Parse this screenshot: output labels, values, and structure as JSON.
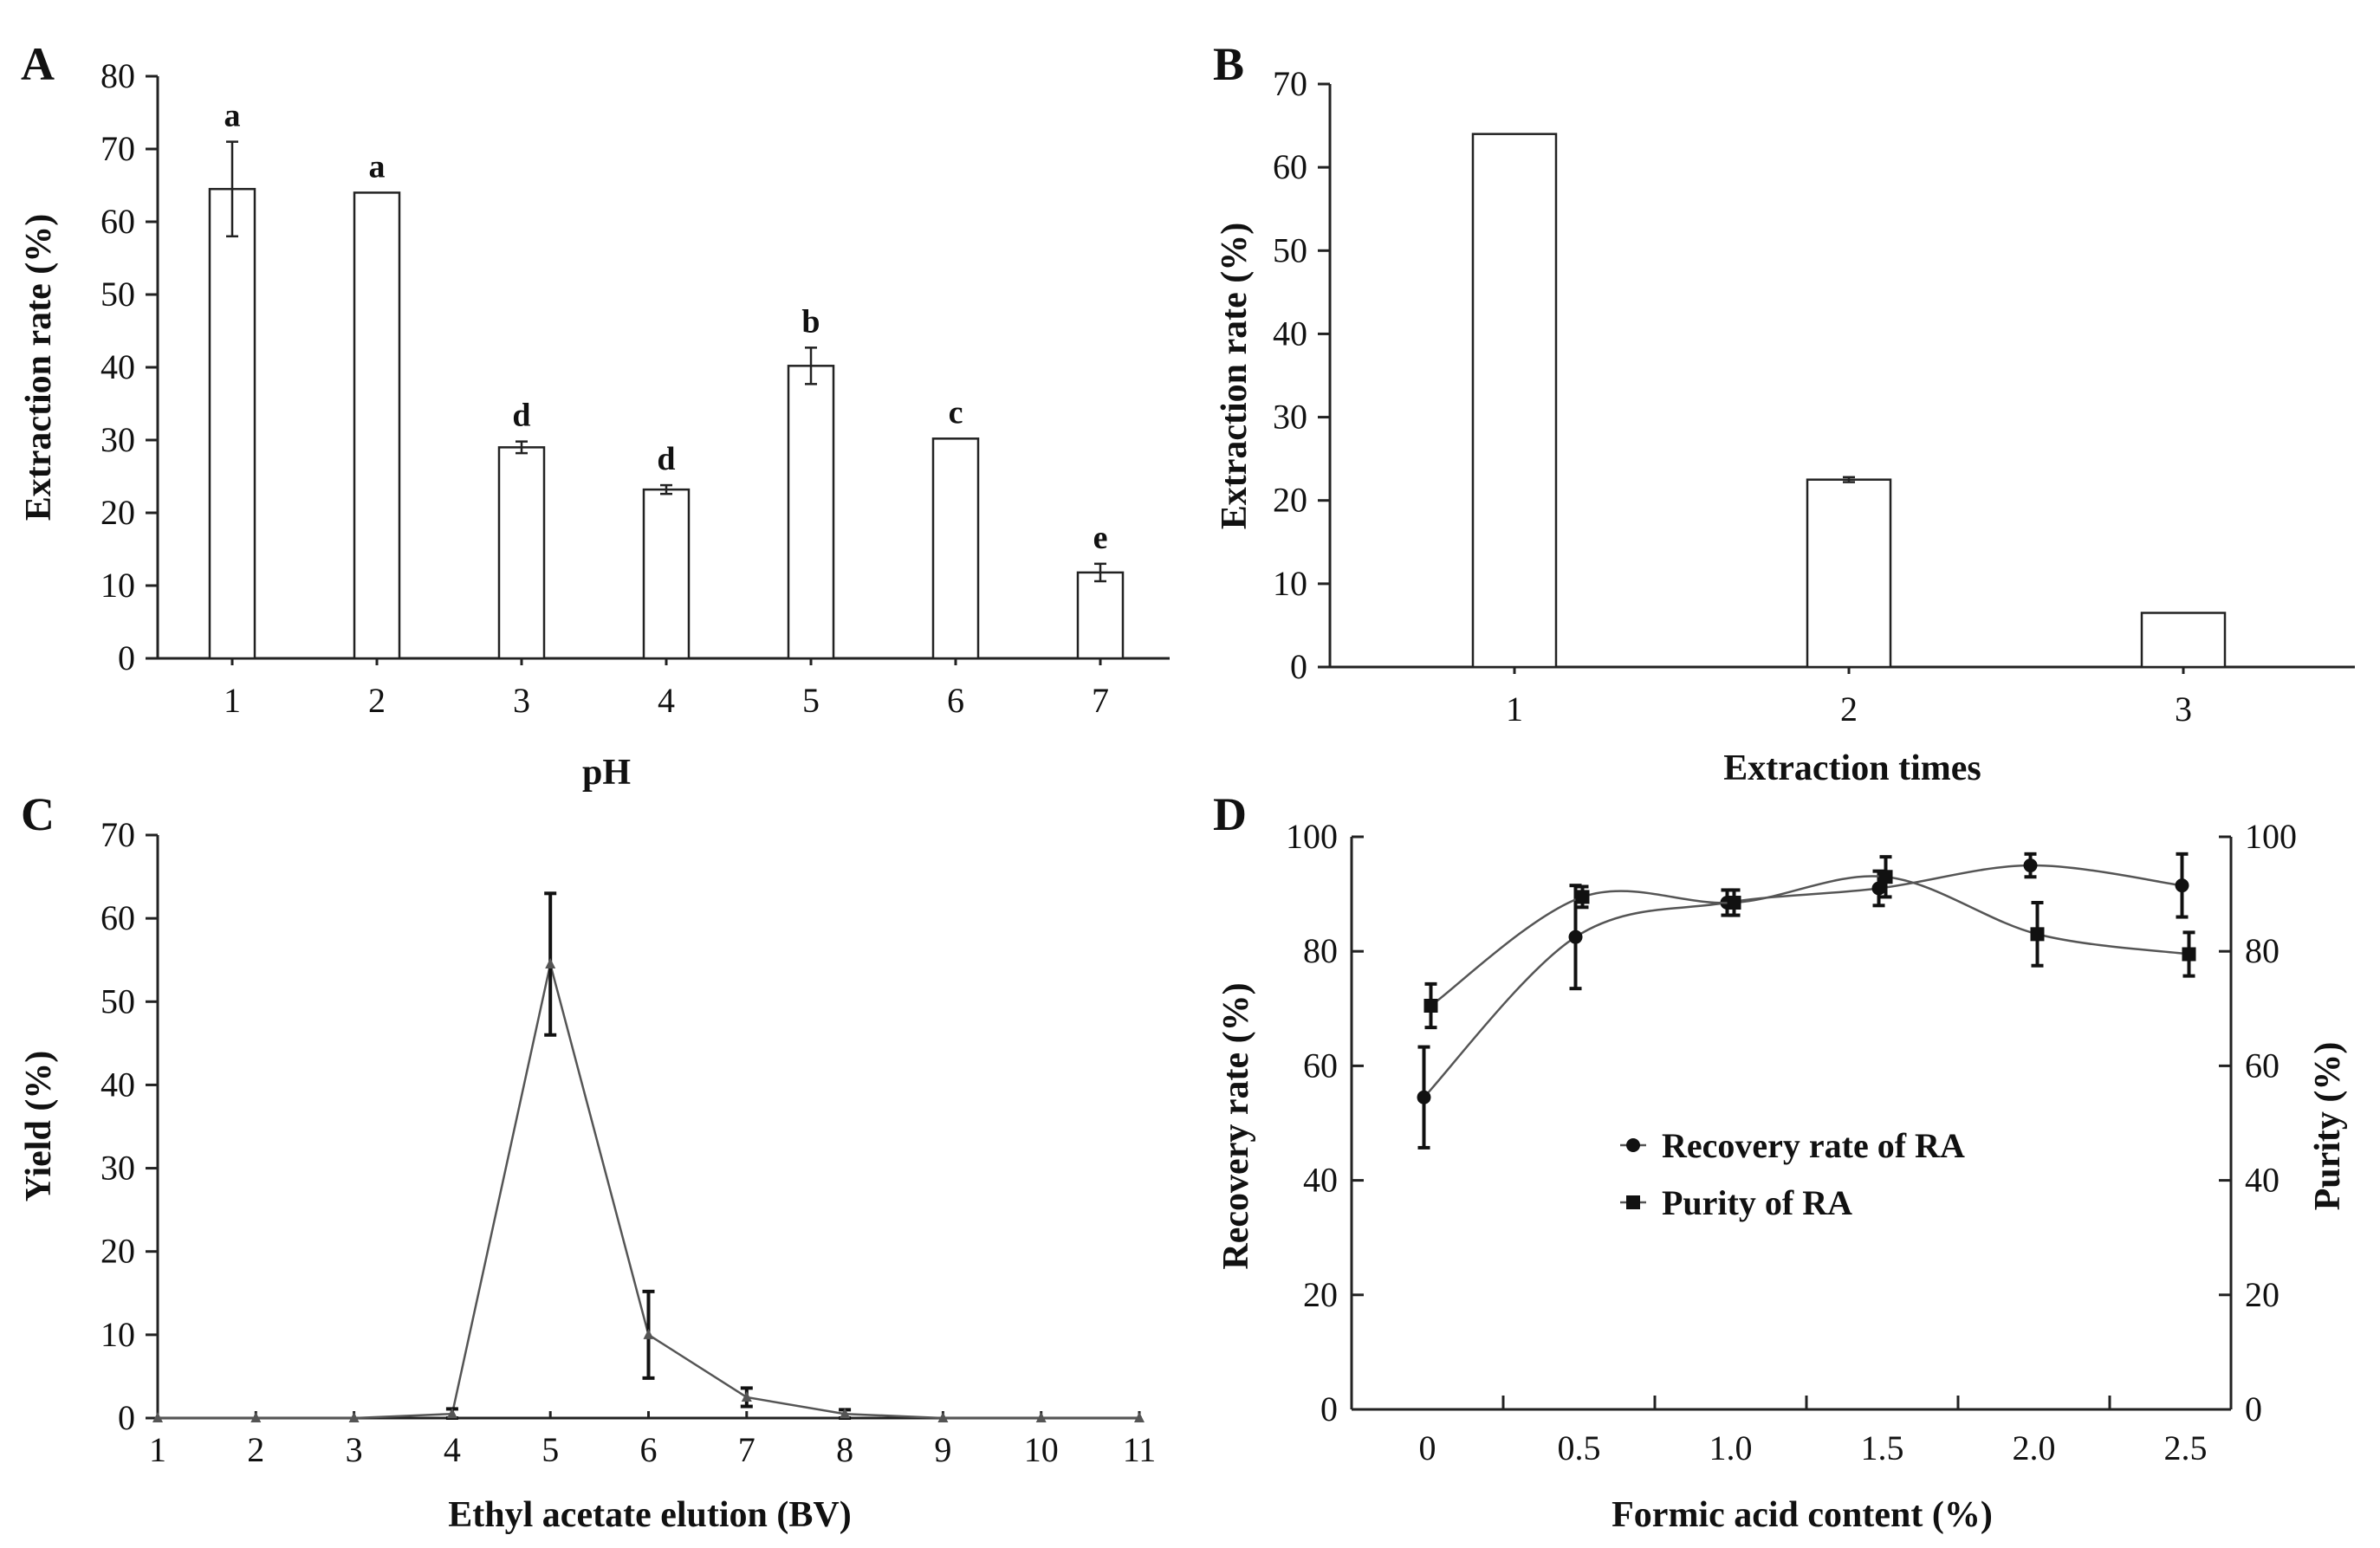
{
  "chart_data": [
    {
      "panel": "A",
      "type": "bar",
      "xlabel": "pH",
      "ylabel": "Extraction rate (%)",
      "ylim": [
        0,
        80
      ],
      "yticks": [
        0,
        10,
        20,
        30,
        40,
        50,
        60,
        70,
        80
      ],
      "categories": [
        "1",
        "2",
        "3",
        "4",
        "5",
        "6",
        "7"
      ],
      "values": [
        64.5,
        64,
        29,
        23.2,
        40.2,
        30.2,
        11.8
      ],
      "errors": [
        6.5,
        0,
        0.8,
        0.6,
        2.5,
        0,
        1.2
      ],
      "annotations": [
        "a",
        "a",
        "d",
        "d",
        "b",
        "c",
        "e"
      ]
    },
    {
      "panel": "B",
      "type": "bar",
      "xlabel": "Extraction times",
      "ylabel": "Extraction rate (%)",
      "ylim": [
        0,
        70
      ],
      "yticks": [
        0,
        10,
        20,
        30,
        40,
        50,
        60,
        70
      ],
      "categories": [
        "1",
        "2",
        "3"
      ],
      "values": [
        64,
        22.5,
        6.5
      ],
      "errors": [
        0,
        0.3,
        0
      ]
    },
    {
      "panel": "C",
      "type": "line",
      "xlabel": "Ethyl acetate elution (BV)",
      "ylabel": "Yield (%)",
      "xlim": [
        1,
        11
      ],
      "ylim": [
        0,
        70
      ],
      "xticks": [
        1,
        2,
        3,
        4,
        5,
        6,
        7,
        8,
        9,
        10,
        11
      ],
      "yticks": [
        0,
        10,
        20,
        30,
        40,
        50,
        60,
        70
      ],
      "x": [
        1,
        2,
        3,
        4,
        5,
        6,
        7,
        8,
        9,
        10,
        11
      ],
      "y": [
        0,
        0,
        0,
        0.5,
        54.5,
        10,
        2.5,
        0.5,
        0,
        0,
        0
      ],
      "errors": [
        0,
        0,
        0,
        0.6,
        8.5,
        5.2,
        1.1,
        0.5,
        0,
        0,
        0
      ]
    },
    {
      "panel": "D",
      "type": "line",
      "xlabel": "Formic acid content (%)",
      "ylabel": "Recovery rate (%)",
      "y2label": "Purity (%)",
      "ylim": [
        0,
        100
      ],
      "y2lim": [
        0,
        100
      ],
      "xlim": [
        -0.25,
        2.65
      ],
      "xticks": [
        "0",
        "0.5",
        "1.0",
        "1.5",
        "2.0",
        "2.5"
      ],
      "yticks": [
        0,
        20,
        40,
        60,
        80,
        100
      ],
      "x": [
        0,
        0.5,
        1.0,
        1.5,
        2.0,
        2.5
      ],
      "series": [
        {
          "name": "Recovery rate of RA",
          "marker": "circle",
          "values": [
            54.5,
            82.5,
            88.5,
            91,
            95,
            91.5
          ],
          "errors": [
            8.8,
            9.0,
            2.2,
            3.0,
            2.0,
            5.5
          ]
        },
        {
          "name": "Purity of RA",
          "marker": "square",
          "values": [
            70.5,
            89.5,
            88.5,
            93,
            83,
            79.5
          ],
          "errors": [
            3.8,
            1.8,
            2.2,
            3.5,
            5.5,
            3.8
          ]
        }
      ],
      "legend_position": "center"
    }
  ]
}
